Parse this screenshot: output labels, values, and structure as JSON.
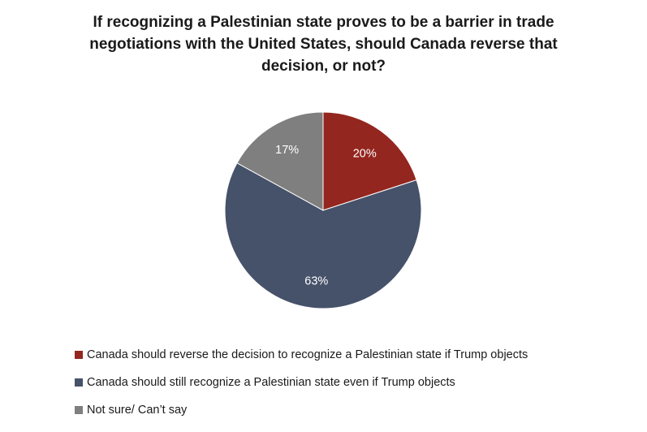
{
  "chart_data": {
    "type": "pie",
    "title_lines": [
      "If recognizing a Palestinian state proves to be a barrier in trade",
      "negotiations with the United States, should Canada reverse that",
      "decision, or not?"
    ],
    "slices": [
      {
        "name": "Canada should reverse the decision to recognize a Palestinian state if Trump objects",
        "value": 20,
        "label": "20%",
        "color": "#93261f"
      },
      {
        "name": "Canada should still recognize a Palestinian state even if Trump objects",
        "value": 63,
        "label": "63%",
        "color": "#46526a"
      },
      {
        "name": "Not sure/ Can’t say",
        "value": 17,
        "label": "17%",
        "color": "#7f7f7f"
      }
    ],
    "legend_position": "bottom"
  }
}
